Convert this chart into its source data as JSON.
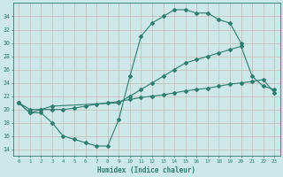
{
  "line1_x": [
    0,
    1,
    2,
    3,
    4,
    5,
    6,
    7,
    8,
    9,
    10,
    11,
    12,
    13,
    14,
    15,
    16,
    17,
    18,
    19,
    20
  ],
  "line1_y": [
    21,
    19.5,
    19.5,
    18,
    16,
    15.5,
    15,
    14.5,
    14.5,
    18.5,
    25,
    31,
    33,
    34,
    35,
    35,
    34.5,
    34.5,
    33.5,
    33,
    30
  ],
  "line2_x": [
    0,
    1,
    2,
    3,
    9,
    10,
    11,
    12,
    13,
    14,
    15,
    16,
    17,
    18,
    19,
    20,
    21,
    22,
    23
  ],
  "line2_y": [
    21,
    19.5,
    20,
    20.5,
    21,
    22,
    23,
    24,
    25,
    26,
    27,
    27.5,
    28,
    28.5,
    29,
    29.5,
    25,
    23.5,
    23
  ],
  "line3_x": [
    0,
    1,
    2,
    3,
    4,
    5,
    6,
    7,
    8,
    9,
    10,
    11,
    12,
    13,
    14,
    15,
    16,
    17,
    18,
    19,
    20,
    21,
    22,
    23
  ],
  "line3_y": [
    21,
    20,
    20,
    20,
    20,
    20.2,
    20.5,
    20.8,
    21,
    21.2,
    21.5,
    21.8,
    22,
    22.2,
    22.5,
    22.8,
    23,
    23.2,
    23.5,
    23.8,
    24,
    24.2,
    24.5,
    22.5
  ],
  "color": "#2e7d6e",
  "bg_color": "#cce8e8",
  "grid_color": "#b0d8d8",
  "xlabel": "Humidex (Indice chaleur)",
  "ylim": [
    13,
    36
  ],
  "xlim": [
    -0.5,
    23.5
  ],
  "yticks": [
    14,
    16,
    18,
    20,
    22,
    24,
    26,
    28,
    30,
    32,
    34
  ],
  "xticks": [
    0,
    1,
    2,
    3,
    4,
    5,
    6,
    7,
    8,
    9,
    10,
    11,
    12,
    13,
    14,
    15,
    16,
    17,
    18,
    19,
    20,
    21,
    22,
    23
  ]
}
